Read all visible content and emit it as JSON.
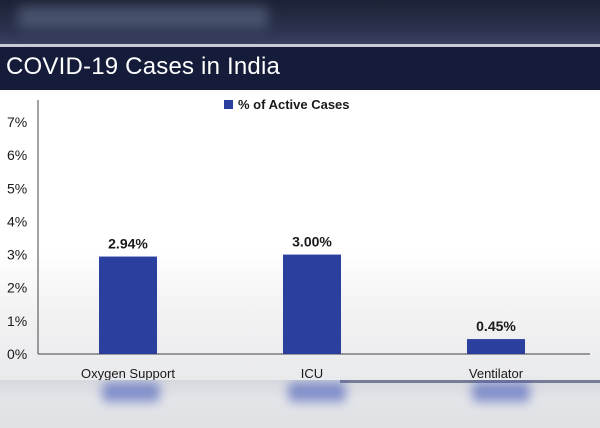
{
  "title": "COVID-19 Cases in India",
  "chart_data": {
    "type": "bar",
    "title": "",
    "xlabel": "",
    "ylabel": "",
    "categories": [
      "Oxygen Support",
      "ICU",
      "Ventilator"
    ],
    "series": [
      {
        "name": "% of Active Cases",
        "values": [
          2.94,
          3.0,
          0.45
        ]
      }
    ],
    "data_labels": [
      "2.94%",
      "3.00%",
      "0.45%"
    ],
    "ylim": [
      0,
      7
    ],
    "yticks": [
      0,
      1,
      2,
      3,
      4,
      5,
      6,
      7
    ],
    "ytick_labels": [
      "0%",
      "1%",
      "2%",
      "3%",
      "4%",
      "5%",
      "6%",
      "7%"
    ],
    "legend_position": "top-center",
    "grid": false,
    "bar_color": "#2b3f9e"
  }
}
